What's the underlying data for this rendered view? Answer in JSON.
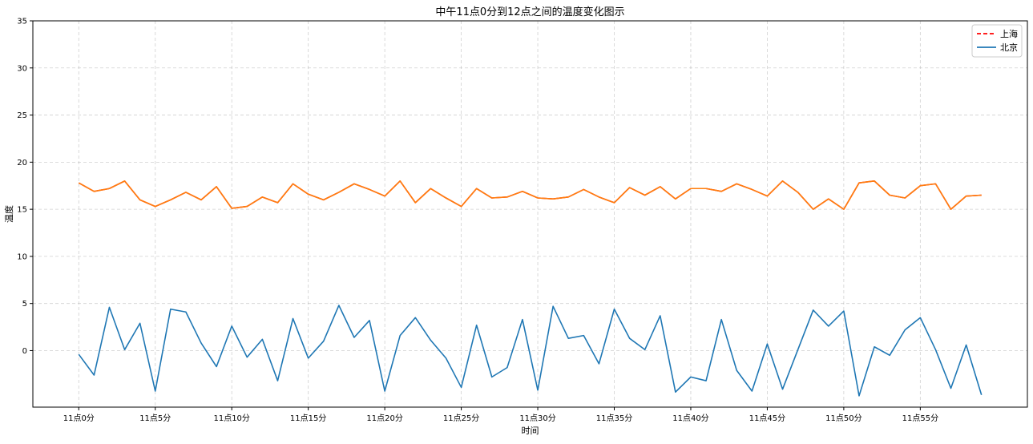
{
  "chart_data": {
    "type": "line",
    "title": "中午11点0分到12点之间的温度变化图示",
    "xlabel": "时间",
    "ylabel": "温度",
    "x": [
      0,
      1,
      2,
      3,
      4,
      5,
      6,
      7,
      8,
      9,
      10,
      11,
      12,
      13,
      14,
      15,
      16,
      17,
      18,
      19,
      20,
      21,
      22,
      23,
      24,
      25,
      26,
      27,
      28,
      29,
      30,
      31,
      32,
      33,
      34,
      35,
      36,
      37,
      38,
      39,
      40,
      41,
      42,
      43,
      44,
      45,
      46,
      47,
      48,
      49,
      50,
      51,
      52,
      53,
      54,
      55,
      56,
      57,
      58,
      59
    ],
    "xticks": [
      0,
      5,
      10,
      15,
      20,
      25,
      30,
      35,
      40,
      45,
      50,
      55
    ],
    "xtick_labels": [
      "11点0分",
      "11点5分",
      "11点10分",
      "11点15分",
      "11点20分",
      "11点25分",
      "11点30分",
      "11点35分",
      "11点40分",
      "11点45分",
      "11点50分",
      "11点55分"
    ],
    "yticks": [
      0,
      5,
      10,
      15,
      20,
      25,
      30,
      35
    ],
    "ylim": [
      -6,
      35
    ],
    "xlim": [
      -3,
      62
    ],
    "grid": true,
    "legend_position": "top-right",
    "series": [
      {
        "name": "上海",
        "color": "#ff0000",
        "linestyle": "dashed",
        "values": [
          17.8,
          16.9,
          17.2,
          18.0,
          16.0,
          15.3,
          16.0,
          16.8,
          16.0,
          17.4,
          15.1,
          15.3,
          16.3,
          15.7,
          17.7,
          16.6,
          16.0,
          16.8,
          17.7,
          17.1,
          16.4,
          18.0,
          15.7,
          17.2,
          16.2,
          15.3,
          17.2,
          16.2,
          16.3,
          16.9,
          16.2,
          16.1,
          16.3,
          17.1,
          16.3,
          15.7,
          17.3,
          16.5,
          17.4,
          16.1,
          17.2,
          17.2,
          16.9,
          17.7,
          17.1,
          16.4,
          18.0,
          16.8,
          15.0,
          16.1,
          15.0,
          17.8,
          18.0,
          16.5,
          16.2,
          17.5,
          17.7,
          15.0,
          16.4,
          16.5
        ]
      },
      {
        "name": "北京",
        "color": "#1f77b4",
        "linestyle": "solid",
        "values": [
          -0.4,
          -2.6,
          4.6,
          0.1,
          2.9,
          -4.3,
          4.4,
          4.1,
          0.8,
          -1.7,
          2.6,
          -0.7,
          1.2,
          -3.2,
          3.4,
          -0.8,
          1.0,
          4.8,
          1.4,
          3.2,
          -4.3,
          1.6,
          3.5,
          1.1,
          -0.8,
          -3.9,
          2.7,
          -2.8,
          -1.8,
          3.3,
          -4.2,
          4.7,
          1.3,
          1.6,
          -1.4,
          4.4,
          1.3,
          0.1,
          3.7,
          -4.4,
          -2.8,
          -3.2,
          3.3,
          -2.1,
          -4.3,
          0.7,
          -4.1,
          0.1,
          4.3,
          2.6,
          4.2,
          -4.8,
          0.4,
          -0.5,
          2.2,
          3.5,
          0.1,
          -4.0,
          0.6,
          -4.7
        ]
      }
    ]
  }
}
